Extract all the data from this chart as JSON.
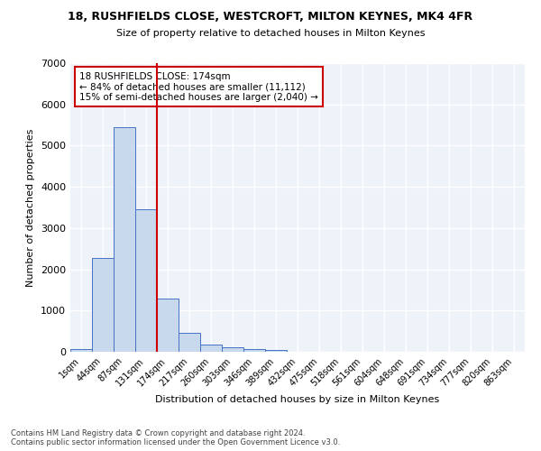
{
  "title1": "18, RUSHFIELDS CLOSE, WESTCROFT, MILTON KEYNES, MK4 4FR",
  "title2": "Size of property relative to detached houses in Milton Keynes",
  "xlabel": "Distribution of detached houses by size in Milton Keynes",
  "ylabel": "Number of detached properties",
  "footer1": "Contains HM Land Registry data © Crown copyright and database right 2024.",
  "footer2": "Contains public sector information licensed under the Open Government Licence v3.0.",
  "annotation_line1": "18 RUSHFIELDS CLOSE: 174sqm",
  "annotation_line2": "← 84% of detached houses are smaller (11,112)",
  "annotation_line3": "15% of semi-detached houses are larger (2,040) →",
  "bar_labels": [
    "1sqm",
    "44sqm",
    "87sqm",
    "131sqm",
    "174sqm",
    "217sqm",
    "260sqm",
    "303sqm",
    "346sqm",
    "389sqm",
    "432sqm",
    "475sqm",
    "518sqm",
    "561sqm",
    "604sqm",
    "648sqm",
    "691sqm",
    "734sqm",
    "777sqm",
    "820sqm",
    "863sqm"
  ],
  "bar_values": [
    60,
    2270,
    5450,
    3450,
    1300,
    450,
    170,
    100,
    75,
    40,
    0,
    0,
    0,
    0,
    0,
    0,
    0,
    0,
    0,
    0,
    0
  ],
  "bar_color": "#c9d9ed",
  "bar_edge_color": "#4472c4",
  "vline_color": "#cc0000",
  "annotation_box_color": "#cc0000",
  "bg_color": "#eef2f9",
  "grid_color": "#ffffff",
  "ylim": [
    0,
    7000
  ],
  "yticks": [
    0,
    1000,
    2000,
    3000,
    4000,
    5000,
    6000,
    7000
  ]
}
